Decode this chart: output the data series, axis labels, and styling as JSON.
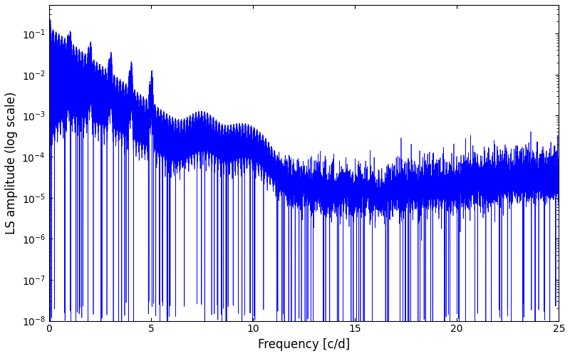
{
  "title": "",
  "xlabel": "Frequency [c/d]",
  "ylabel": "LS amplitude (log scale)",
  "line_color": "#0000ff",
  "line_width": 0.5,
  "xlim": [
    0,
    25
  ],
  "ylim": [
    1e-08,
    0.5
  ],
  "figsize": [
    8.0,
    5.0
  ],
  "dpi": 100,
  "bg_color": "#ffffff",
  "yscale": "log",
  "yticks": [
    1e-08,
    1e-07,
    1e-06,
    1e-05,
    0.0001,
    0.001,
    0.01,
    0.1
  ],
  "xticks": [
    0,
    5,
    10,
    15,
    20,
    25
  ]
}
